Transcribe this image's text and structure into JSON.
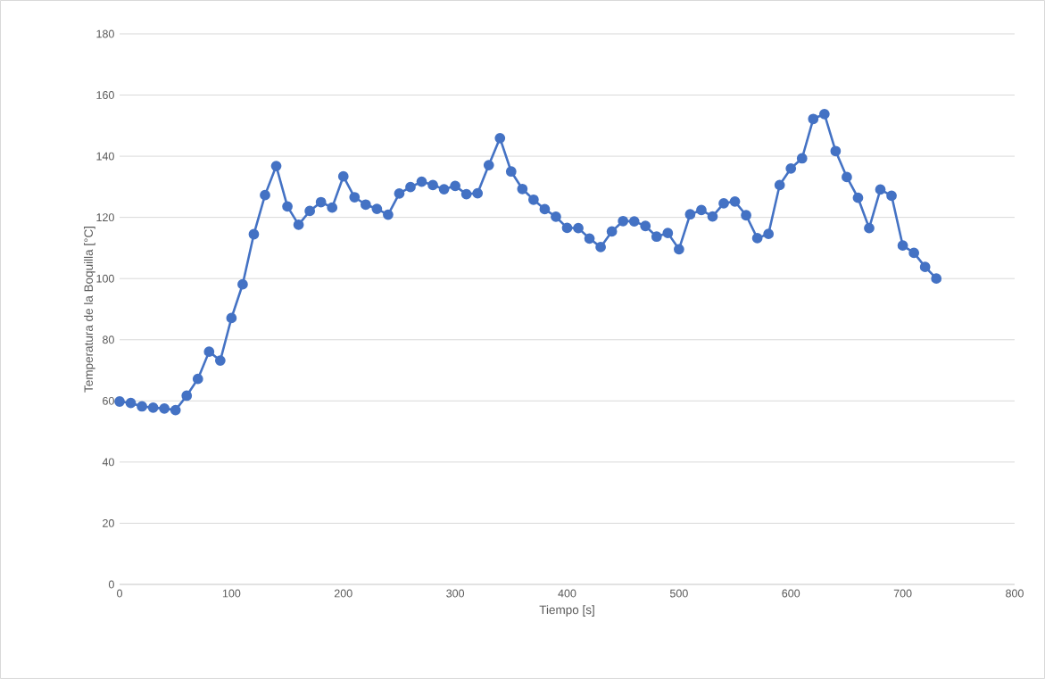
{
  "chart_data": {
    "type": "line",
    "xlabel": "Tiempo [s]",
    "ylabel": "Temperatura de la Boquilla [°C]",
    "x": [
      0,
      10,
      20,
      30,
      40,
      50,
      60,
      70,
      80,
      90,
      100,
      110,
      120,
      130,
      140,
      150,
      160,
      170,
      180,
      190,
      200,
      210,
      220,
      230,
      240,
      250,
      260,
      270,
      280,
      290,
      300,
      310,
      320,
      330,
      340,
      350,
      360,
      370,
      380,
      390,
      400,
      410,
      420,
      430,
      440,
      450,
      460,
      470,
      480,
      490,
      500,
      510,
      520,
      530,
      540,
      550,
      560,
      570,
      580,
      590,
      600,
      610,
      620,
      630,
      640,
      650,
      660,
      670,
      680,
      690,
      700,
      710,
      720,
      730
    ],
    "series": [
      {
        "color": "#4472c4",
        "values": [
          59.8,
          59.3,
          58.2,
          57.8,
          57.5,
          57,
          61.7,
          67.2,
          76.1,
          73.2,
          87.1,
          98.1,
          114.5,
          127.3,
          136.8,
          123.6,
          117.6,
          122.1,
          125,
          123.2,
          133.4,
          126.6,
          124.2,
          122.8,
          120.9,
          127.8,
          129.9,
          131.7,
          130.6,
          129.2,
          130.3,
          127.6,
          127.9,
          137.1,
          145.9,
          135,
          129.3,
          125.8,
          122.7,
          120.2,
          116.6,
          116.5,
          113.1,
          110.3,
          115.4,
          118.8,
          118.7,
          117.2,
          113.7,
          114.9,
          109.6,
          121,
          122.4,
          120.3,
          124.6,
          125.2,
          120.7,
          113.2,
          114.6,
          130.6,
          136,
          139.3,
          152.2,
          153.8,
          141.7,
          133.2,
          126.4,
          116.5,
          129.1,
          127.1,
          110.8,
          108.4,
          103.8,
          100
        ]
      }
    ],
    "xlim": [
      0,
      800
    ],
    "xticks": [
      0,
      100,
      200,
      300,
      400,
      500,
      600,
      700,
      800
    ],
    "ylim": [
      0,
      180
    ],
    "yticks": [
      0,
      20,
      40,
      60,
      80,
      100,
      120,
      140,
      160,
      180
    ],
    "grid": "y",
    "marker": "circle",
    "line_style": "solid"
  }
}
